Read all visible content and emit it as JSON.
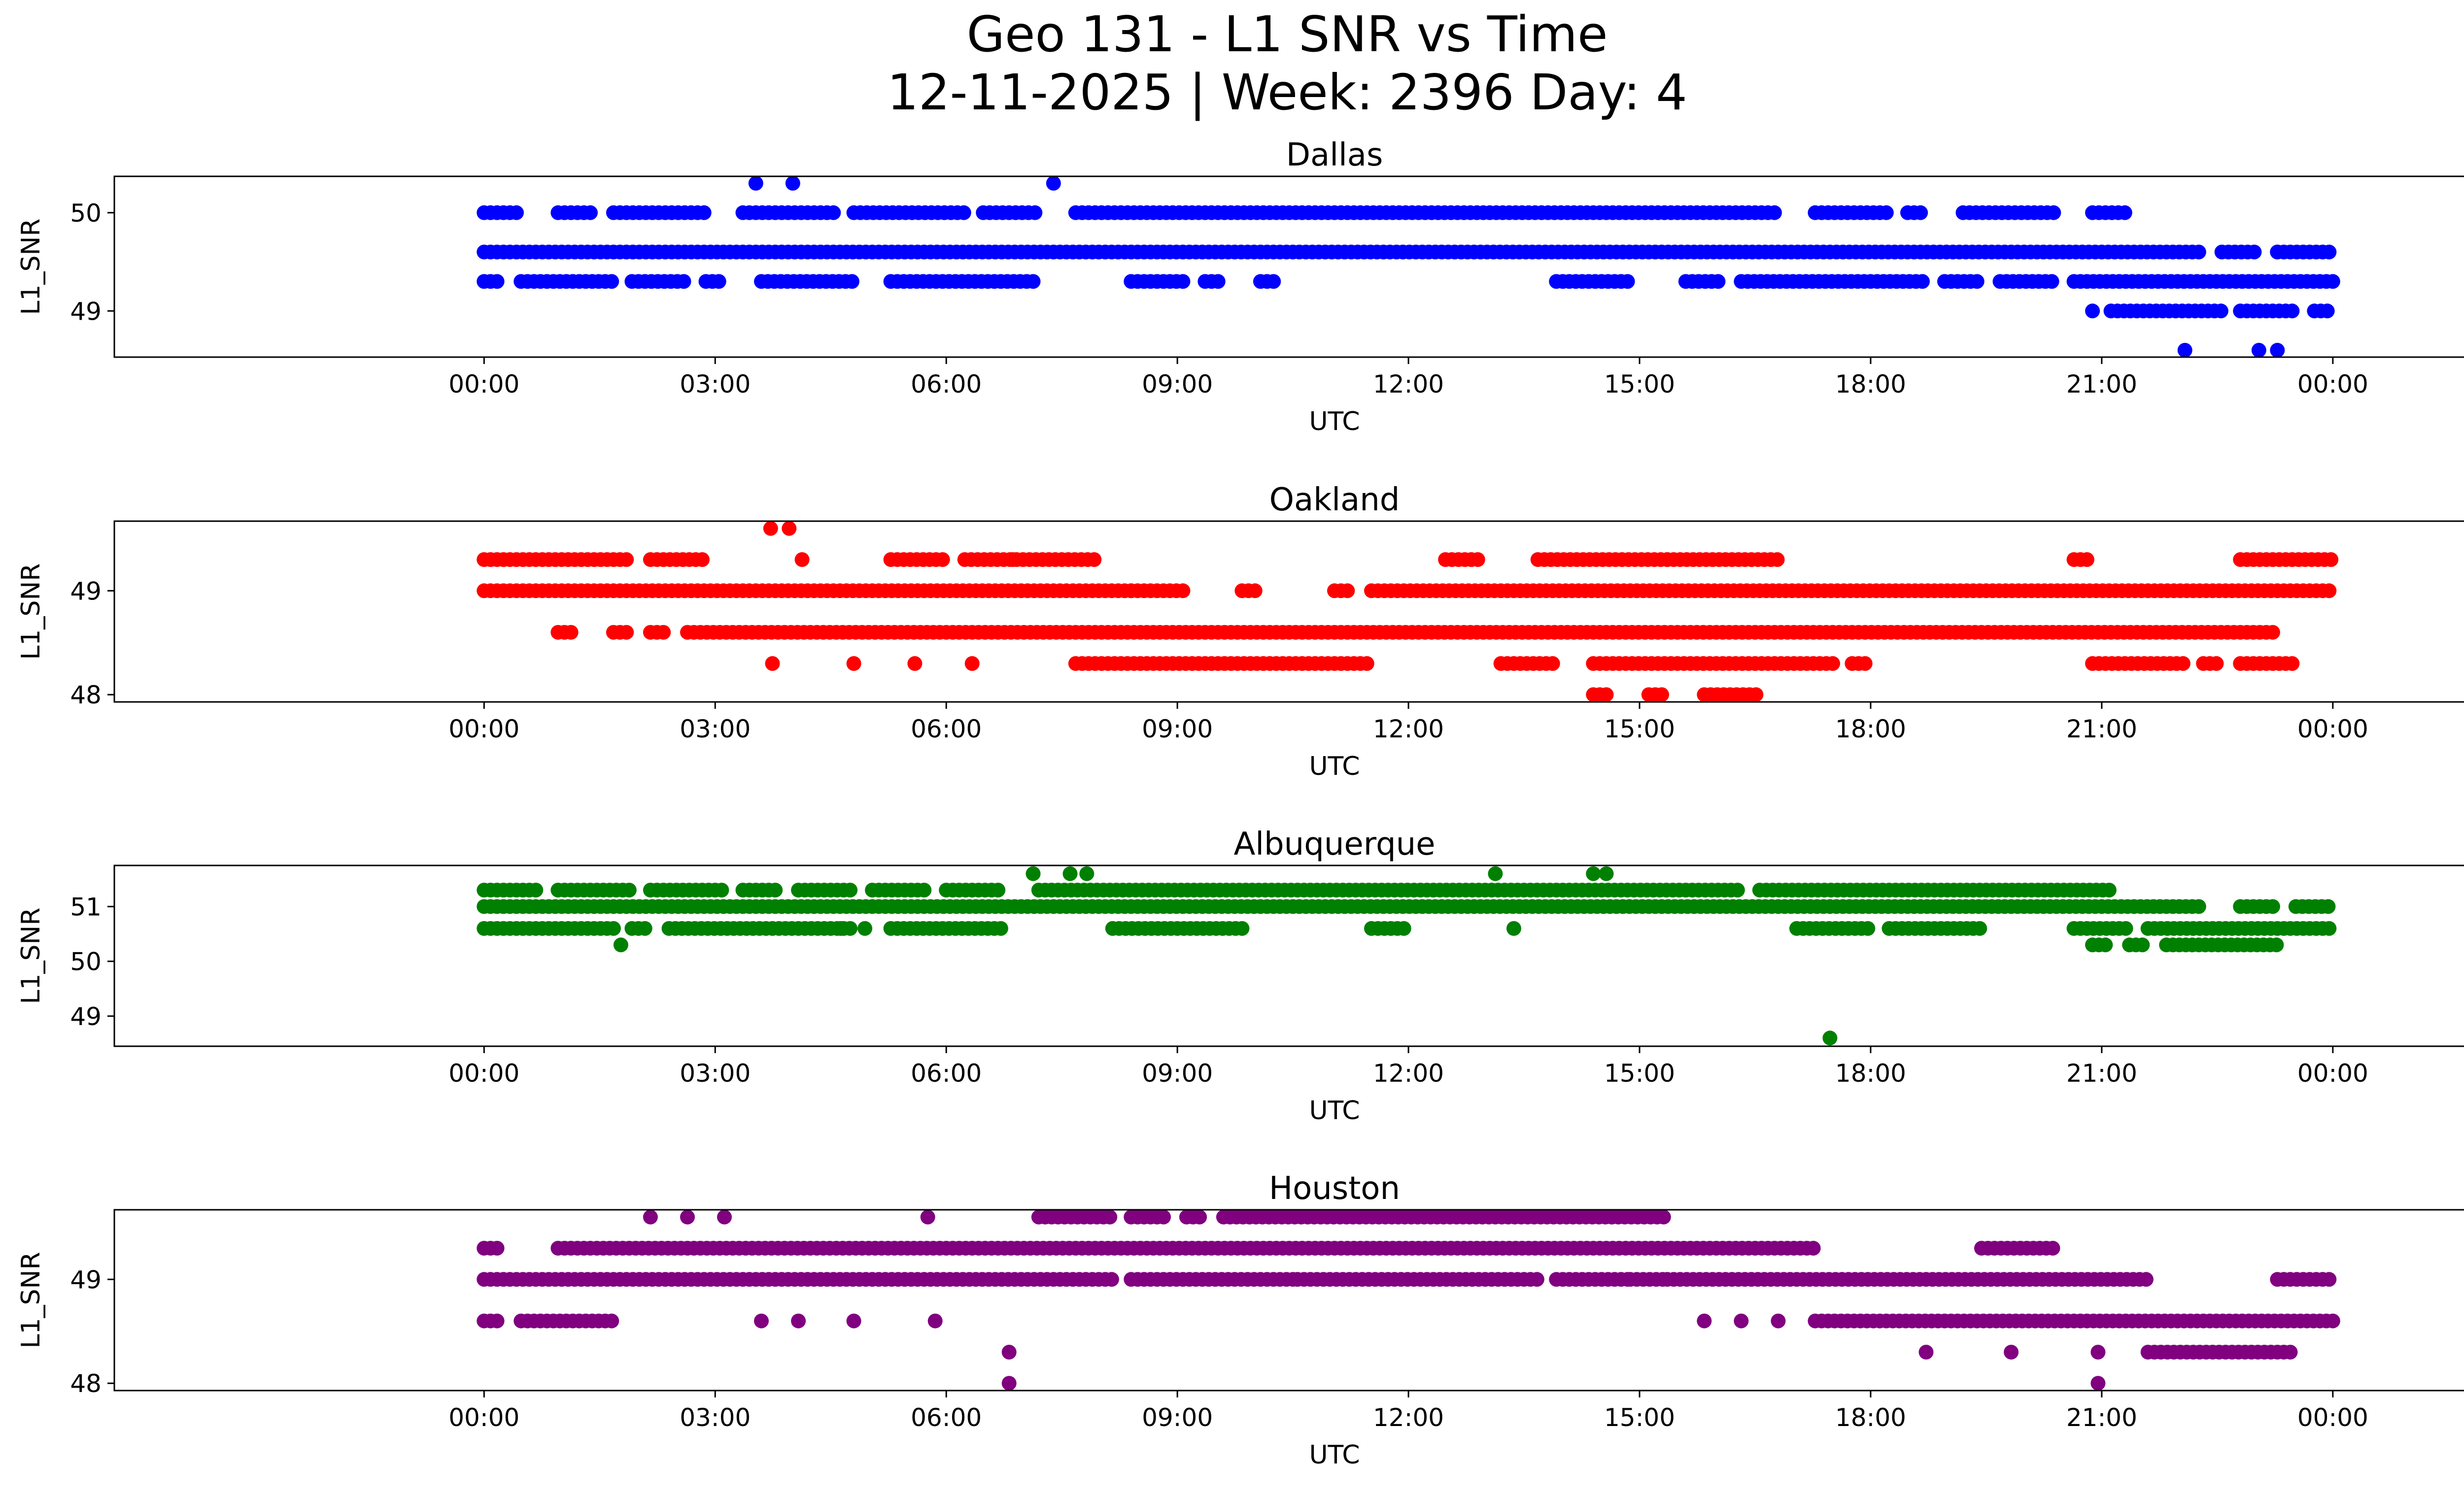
{
  "figure": {
    "title_line1": "Geo 131 - L1 SNR vs Time",
    "title_line2": "12-11-2025 | Week: 2396 Day: 4"
  },
  "chart_data": [
    {
      "type": "scatter",
      "title": "Dallas",
      "xlabel": "UTC",
      "ylabel": "L1_SNR",
      "color": "#0000ff",
      "xlim": [
        -0.2,
        1.12
      ],
      "ylim": [
        48.53,
        50.37
      ],
      "xticks": [
        0,
        0.125,
        0.25,
        0.375,
        0.5,
        0.625,
        0.75,
        0.875,
        1.0
      ],
      "xtick_labels": [
        "00:00",
        "03:00",
        "06:00",
        "09:00",
        "12:00",
        "15:00",
        "18:00",
        "21:00",
        "00:00"
      ],
      "yticks": [
        49,
        50
      ],
      "ytick_labels": [
        "49",
        "50"
      ],
      "levels": [
        {
          "y": 50.0,
          "runs": [
            [
              0.0,
              0.02
            ],
            [
              0.04,
              0.06
            ],
            [
              0.07,
              0.12
            ],
            [
              0.14,
              0.19
            ],
            [
              0.2,
              0.26
            ],
            [
              0.27,
              0.3
            ],
            [
              0.32,
              0.7
            ],
            [
              0.72,
              0.76
            ],
            [
              0.77,
              0.78
            ],
            [
              0.8,
              0.85
            ],
            [
              0.87,
              0.89
            ]
          ]
        },
        {
          "y": 49.6,
          "runs": [
            [
              0.0,
              0.93
            ],
            [
              0.94,
              0.96
            ],
            [
              0.97,
              1.0
            ]
          ]
        },
        {
          "y": 49.3,
          "runs": [
            [
              0.0,
              0.01
            ],
            [
              0.02,
              0.07
            ],
            [
              0.08,
              0.11
            ],
            [
              0.12,
              0.13
            ],
            [
              0.15,
              0.2
            ],
            [
              0.22,
              0.3
            ],
            [
              0.35,
              0.38
            ],
            [
              0.39,
              0.4
            ],
            [
              0.42,
              0.43
            ],
            [
              0.58,
              0.62
            ],
            [
              0.65,
              0.67
            ],
            [
              0.68,
              0.78
            ],
            [
              0.79,
              0.81
            ],
            [
              0.82,
              0.85
            ],
            [
              0.86,
              1.0
            ]
          ]
        },
        {
          "y": 49.0,
          "runs": [
            [
              0.88,
              0.94
            ],
            [
              0.95,
              0.98
            ],
            [
              0.99,
              1.0
            ]
          ]
        }
      ],
      "points": [
        [
          0.147,
          50.3
        ],
        [
          0.167,
          50.3
        ],
        [
          0.308,
          50.3
        ],
        [
          0.87,
          49.0
        ],
        [
          0.92,
          48.6
        ],
        [
          0.96,
          48.6
        ],
        [
          0.97,
          48.6
        ],
        [
          0.97,
          49.6
        ]
      ]
    },
    {
      "type": "scatter",
      "title": "Oakland",
      "xlabel": "UTC",
      "ylabel": "L1_SNR",
      "color": "#ff0000",
      "xlim": [
        -0.2,
        1.12
      ],
      "ylim": [
        47.93,
        49.67
      ],
      "xticks": [
        0,
        0.125,
        0.25,
        0.375,
        0.5,
        0.625,
        0.75,
        0.875,
        1.0
      ],
      "xtick_labels": [
        "00:00",
        "03:00",
        "06:00",
        "09:00",
        "12:00",
        "15:00",
        "18:00",
        "21:00",
        "00:00"
      ],
      "yticks": [
        48,
        49
      ],
      "ytick_labels": [
        "48",
        "49"
      ],
      "levels": [
        {
          "y": 49.3,
          "runs": [
            [
              0.0,
              0.08
            ],
            [
              0.09,
              0.12
            ],
            [
              0.22,
              0.25
            ],
            [
              0.26,
              0.33
            ],
            [
              0.52,
              0.54
            ],
            [
              0.57,
              0.64
            ],
            [
              0.64,
              0.7
            ],
            [
              0.86,
              0.87
            ],
            [
              0.95,
              1.0
            ]
          ]
        },
        {
          "y": 49.0,
          "runs": [
            [
              0.0,
              0.35
            ],
            [
              0.35,
              0.38
            ],
            [
              0.41,
              0.42
            ],
            [
              0.46,
              0.47
            ],
            [
              0.48,
              1.0
            ]
          ]
        },
        {
          "y": 48.6,
          "runs": [
            [
              0.04,
              0.05
            ],
            [
              0.07,
              0.08
            ],
            [
              0.09,
              0.1
            ],
            [
              0.11,
              0.97
            ]
          ]
        },
        {
          "y": 48.3,
          "runs": [
            [
              0.32,
              0.48
            ],
            [
              0.55,
              0.58
            ],
            [
              0.6,
              0.73
            ],
            [
              0.74,
              0.75
            ],
            [
              0.87,
              0.92
            ],
            [
              0.93,
              0.94
            ],
            [
              0.95,
              0.98
            ]
          ]
        },
        {
          "y": 48.0,
          "runs": [
            [
              0.6,
              0.61
            ],
            [
              0.63,
              0.64
            ],
            [
              0.66,
              0.69
            ]
          ]
        }
      ],
      "points": [
        [
          0.155,
          49.6
        ],
        [
          0.165,
          49.6
        ],
        [
          0.156,
          48.3
        ],
        [
          0.172,
          49.3
        ],
        [
          0.286,
          49.3
        ],
        [
          0.2,
          48.3
        ],
        [
          0.233,
          48.3
        ],
        [
          0.264,
          48.3
        ]
      ]
    },
    {
      "type": "scatter",
      "title": "Albuquerque",
      "xlabel": "UTC",
      "ylabel": "L1_SNR",
      "color": "#008000",
      "xlim": [
        -0.2,
        1.12
      ],
      "ylim": [
        48.45,
        51.75
      ],
      "xticks": [
        0,
        0.125,
        0.25,
        0.375,
        0.5,
        0.625,
        0.75,
        0.875,
        1.0
      ],
      "xtick_labels": [
        "00:00",
        "03:00",
        "06:00",
        "09:00",
        "12:00",
        "15:00",
        "18:00",
        "21:00",
        "00:00"
      ],
      "yticks": [
        49,
        50,
        51
      ],
      "ytick_labels": [
        "49",
        "50",
        "51"
      ],
      "levels": [
        {
          "y": 51.3,
          "runs": [
            [
              0.0,
              0.03
            ],
            [
              0.04,
              0.08
            ],
            [
              0.09,
              0.13
            ],
            [
              0.14,
              0.16
            ],
            [
              0.17,
              0.2
            ],
            [
              0.21,
              0.24
            ],
            [
              0.25,
              0.28
            ],
            [
              0.3,
              0.68
            ],
            [
              0.69,
              0.88
            ]
          ]
        },
        {
          "y": 51.0,
          "runs": [
            [
              0.0,
              0.93
            ],
            [
              0.95,
              0.97
            ],
            [
              0.98,
              1.0
            ]
          ]
        },
        {
          "y": 50.6,
          "runs": [
            [
              0.0,
              0.07
            ],
            [
              0.08,
              0.09
            ],
            [
              0.1,
              0.2
            ],
            [
              0.22,
              0.28
            ],
            [
              0.34,
              0.41
            ],
            [
              0.48,
              0.5
            ],
            [
              0.71,
              0.75
            ],
            [
              0.76,
              0.81
            ],
            [
              0.86,
              0.89
            ],
            [
              0.9,
              1.0
            ]
          ]
        },
        {
          "y": 50.3,
          "runs": [
            [
              0.87,
              0.88
            ],
            [
              0.89,
              0.9
            ],
            [
              0.91,
              0.97
            ]
          ]
        }
      ],
      "points": [
        [
          0.074,
          50.3
        ],
        [
          0.297,
          51.6
        ],
        [
          0.317,
          51.6
        ],
        [
          0.326,
          51.6
        ],
        [
          0.547,
          51.6
        ],
        [
          0.6,
          51.6
        ],
        [
          0.607,
          51.6
        ],
        [
          0.557,
          50.6
        ],
        [
          0.728,
          48.6
        ],
        [
          0.193,
          50.6
        ],
        [
          0.206,
          50.6
        ]
      ]
    },
    {
      "type": "scatter",
      "title": "Houston",
      "xlabel": "UTC",
      "ylabel": "L1_SNR",
      "color": "#800080",
      "xlim": [
        -0.2,
        1.12
      ],
      "ylim": [
        47.93,
        49.67
      ],
      "xticks": [
        0,
        0.125,
        0.25,
        0.375,
        0.5,
        0.625,
        0.75,
        0.875,
        1.0
      ],
      "xtick_labels": [
        "00:00",
        "03:00",
        "06:00",
        "09:00",
        "12:00",
        "15:00",
        "18:00",
        "21:00",
        "00:00"
      ],
      "yticks": [
        48,
        49
      ],
      "ytick_labels": [
        "48",
        "49"
      ],
      "levels": [
        {
          "y": 49.6,
          "runs": [
            [
              0.3,
              0.34
            ],
            [
              0.35,
              0.37
            ],
            [
              0.38,
              0.39
            ],
            [
              0.4,
              0.61
            ],
            [
              0.61,
              0.64
            ]
          ]
        },
        {
          "y": 49.3,
          "runs": [
            [
              0.0,
              0.01
            ],
            [
              0.04,
              0.72
            ],
            [
              0.81,
              0.85
            ]
          ]
        },
        {
          "y": 49.0,
          "runs": [
            [
              0.0,
              0.34
            ],
            [
              0.35,
              0.44
            ],
            [
              0.44,
              0.57
            ],
            [
              0.58,
              0.62
            ],
            [
              0.62,
              0.64
            ],
            [
              0.64,
              0.9
            ],
            [
              0.97,
              1.0
            ]
          ]
        },
        {
          "y": 48.6,
          "runs": [
            [
              0.0,
              0.01
            ],
            [
              0.02,
              0.07
            ],
            [
              0.72,
              1.0
            ]
          ]
        },
        {
          "y": 48.3,
          "runs": [
            [
              0.9,
              0.98
            ]
          ]
        }
      ],
      "points": [
        [
          0.09,
          49.6
        ],
        [
          0.11,
          49.6
        ],
        [
          0.13,
          49.6
        ],
        [
          0.24,
          49.6
        ],
        [
          0.244,
          48.6
        ],
        [
          0.284,
          48.3
        ],
        [
          0.284,
          48.0
        ],
        [
          0.78,
          48.3
        ],
        [
          0.826,
          48.3
        ],
        [
          0.873,
          48.3
        ],
        [
          0.873,
          48.0
        ],
        [
          0.15,
          48.6
        ],
        [
          0.17,
          48.6
        ],
        [
          0.2,
          48.6
        ],
        [
          0.66,
          48.6
        ],
        [
          0.68,
          48.6
        ],
        [
          0.7,
          48.6
        ]
      ]
    }
  ]
}
